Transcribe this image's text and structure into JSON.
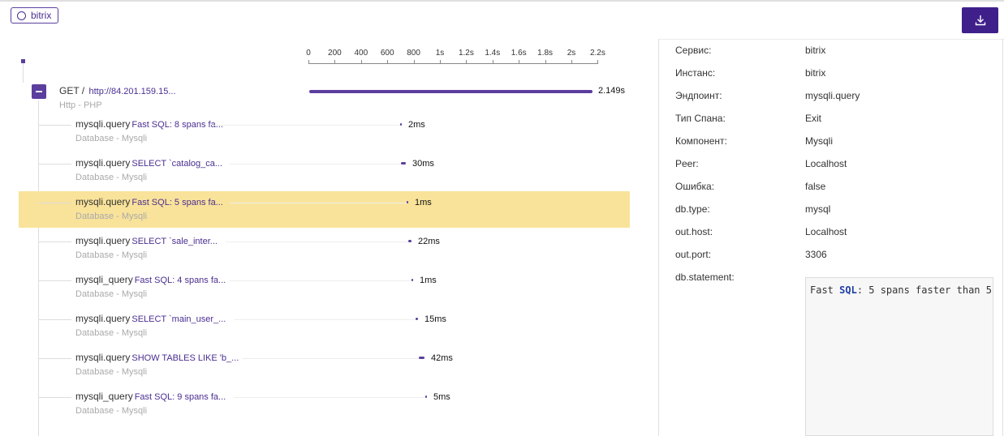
{
  "header": {
    "service_tag": "bitrix",
    "download_icon": "download-icon",
    "accent": "#3f1f8a"
  },
  "timeline": {
    "ticks": [
      "0",
      "200",
      "400",
      "600",
      "800",
      "1s",
      "1.2s",
      "1.4s",
      "1.6s",
      "1.8s",
      "2s",
      "2.2s"
    ],
    "root": {
      "method": "GET /",
      "url": "http://84.201.159.15...",
      "subtitle": "Http - PHP",
      "duration": "2.149s",
      "collapse_icon": "minus-icon"
    },
    "spans": [
      {
        "name": "mysqli.query",
        "statement": "Fast SQL: 8 spans fa...",
        "subtitle": "Database - Mysqli",
        "duration": "2ms",
        "highlighted": false
      },
      {
        "name": "mysqli.query",
        "statement": "SELECT `catalog_ca...",
        "subtitle": "Database - Mysqli",
        "duration": "30ms",
        "highlighted": false
      },
      {
        "name": "mysqli.query",
        "statement": "Fast SQL: 5 spans fa...",
        "subtitle": "Database - Mysqli",
        "duration": "1ms",
        "highlighted": true
      },
      {
        "name": "mysqli.query",
        "statement": "SELECT `sale_inter...",
        "subtitle": "Database - Mysqli",
        "duration": "22ms",
        "highlighted": false
      },
      {
        "name": "mysqli_query",
        "statement": "Fast SQL: 4 spans fa...",
        "subtitle": "Database - Mysqli",
        "duration": "1ms",
        "highlighted": false
      },
      {
        "name": "mysqli.query",
        "statement": "SELECT `main_user_...",
        "subtitle": "Database - Mysqli",
        "duration": "15ms",
        "highlighted": false
      },
      {
        "name": "mysqli.query",
        "statement": "SHOW TABLES LIKE 'b_...",
        "subtitle": "Database - Mysqli",
        "duration": "42ms",
        "highlighted": false
      },
      {
        "name": "mysqli_query",
        "statement": "Fast SQL: 9 spans fa...",
        "subtitle": "Database - Mysqli",
        "duration": "5ms",
        "highlighted": false
      }
    ]
  },
  "details": {
    "attributes": [
      {
        "key": "Сервис:",
        "value": "bitrix"
      },
      {
        "key": "Инстанс:",
        "value": "bitrix"
      },
      {
        "key": "Эндпоинт:",
        "value": "mysqli.query"
      },
      {
        "key": "Тип Спана:",
        "value": "Exit"
      },
      {
        "key": "Компонент:",
        "value": "Mysqli"
      },
      {
        "key": "Peer:",
        "value": "Localhost"
      },
      {
        "key": "Ошибка:",
        "value": "false"
      },
      {
        "key": "db.type:",
        "value": "mysql"
      },
      {
        "key": "out.host:",
        "value": "Localhost"
      },
      {
        "key": "out.port:",
        "value": "3306"
      }
    ],
    "statement_label": "db.statement:",
    "statement_parts": {
      "pre": "Fast ",
      "keyword": "SQL",
      "post": ": 5 spans faster than 5"
    }
  }
}
